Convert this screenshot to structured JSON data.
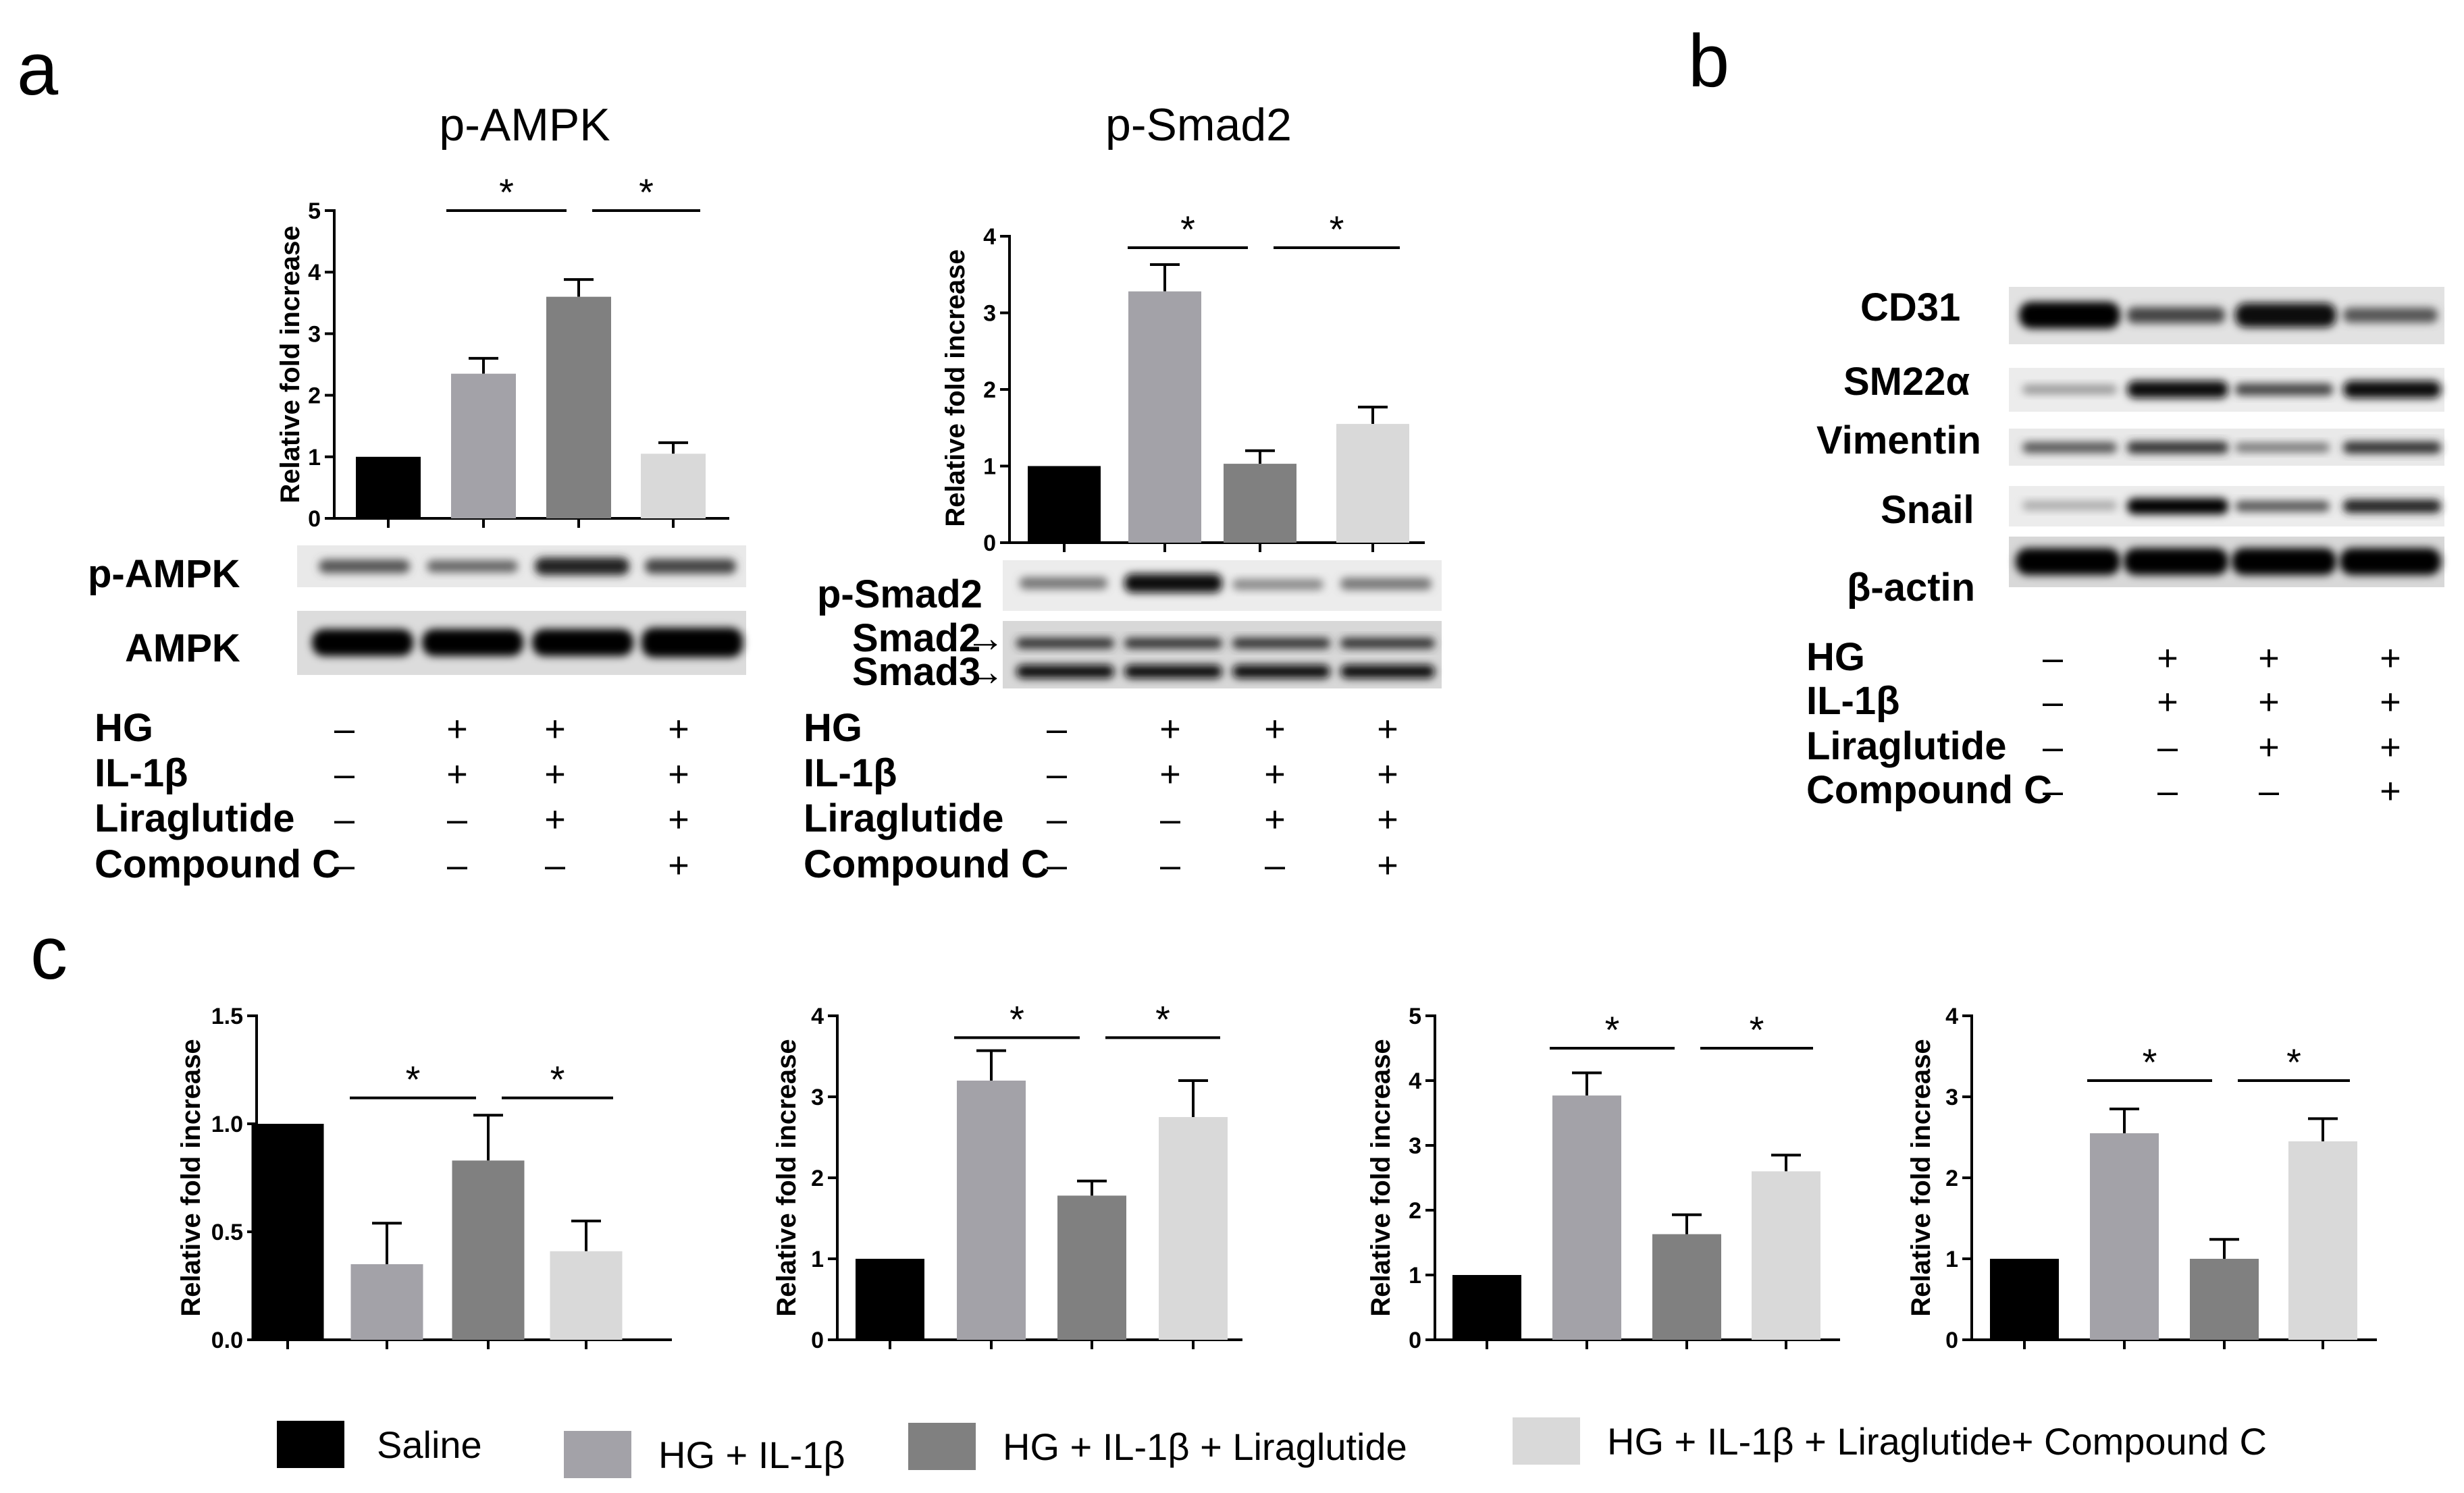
{
  "panels": {
    "a": "a",
    "b": "b",
    "c": "c"
  },
  "colors": {
    "saline": "#000000",
    "hg_il1b": "#a3a2a8",
    "hg_il1b_lira": "#808080",
    "hg_il1b_lira_cc": "#d9d9d9"
  },
  "legend": [
    {
      "label": "Saline",
      "color": "#000000"
    },
    {
      "label": "HG + IL-1β",
      "color": "#a3a2a8"
    },
    {
      "label": "HG + IL-1β + Liraglutide",
      "color": "#808080"
    },
    {
      "label": "HG + IL-1β + Liraglutide+ Compound C",
      "color": "#d9d9d9"
    }
  ],
  "treatment_rows": [
    {
      "label": "HG",
      "values": [
        "–",
        "+",
        "+",
        "+"
      ]
    },
    {
      "label": "IL-1β",
      "values": [
        "–",
        "+",
        "+",
        "+"
      ]
    },
    {
      "label": "Liraglutide",
      "values": [
        "–",
        "–",
        "+",
        "+"
      ]
    },
    {
      "label": "Compound C",
      "values": [
        "–",
        "–",
        "–",
        "+"
      ]
    }
  ],
  "blots": {
    "ampk": [
      "p-AMPK",
      "AMPK"
    ],
    "smad": [
      "p-Smad2",
      "Smad2",
      "Smad3"
    ],
    "b": [
      "CD31",
      "SM22α",
      "Vimentin",
      "Snail",
      "β-actin"
    ]
  },
  "chart_data": [
    {
      "type": "bar",
      "title": "p-AMPK",
      "ylabel": "Relative fold increase",
      "ylim": [
        0,
        5
      ],
      "yticks": [
        "0",
        "1",
        "2",
        "3",
        "4",
        "5"
      ],
      "categories": [
        "Saline",
        "HG + IL-1β",
        "HG + IL-1β + Liraglutide",
        "HG + IL-1β + Liraglutide+ Compound C"
      ],
      "values": [
        1.0,
        2.35,
        3.6,
        1.05
      ],
      "errors": [
        0,
        0.25,
        0.28,
        0.18
      ],
      "significance": [
        {
          "from": 1,
          "to": 2,
          "at": 5.0,
          "label": "*"
        },
        {
          "from": 2,
          "to": 3,
          "at": 5.0,
          "label": "*"
        }
      ]
    },
    {
      "type": "bar",
      "title": "p-Smad2",
      "ylabel": "Relative fold increase",
      "ylim": [
        0,
        4
      ],
      "yticks": [
        "0",
        "1",
        "2",
        "3",
        "4"
      ],
      "categories": [
        "Saline",
        "HG + IL-1β",
        "HG + IL-1β + Liraglutide",
        "HG + IL-1β + Liraglutide+ Compound C"
      ],
      "values": [
        1.0,
        3.28,
        1.03,
        1.55
      ],
      "errors": [
        0,
        0.35,
        0.17,
        0.22
      ],
      "significance": [
        {
          "from": 1,
          "to": 2,
          "at": 3.85,
          "label": "*"
        },
        {
          "from": 2,
          "to": 3,
          "at": 3.85,
          "label": "*"
        }
      ]
    },
    {
      "type": "bar",
      "title": "",
      "ylabel": "Relative fold increase",
      "ylim": [
        0,
        1.5
      ],
      "yticks": [
        "0.0",
        "0.5",
        "1.0",
        "1.5"
      ],
      "categories": [
        "Saline",
        "HG + IL-1β",
        "HG + IL-1β + Liraglutide",
        "HG + IL-1β + Liraglutide+ Compound C"
      ],
      "values": [
        1.0,
        0.35,
        0.83,
        0.41
      ],
      "errors": [
        0,
        0.19,
        0.21,
        0.14
      ],
      "significance": [
        {
          "from": 1,
          "to": 2,
          "at": 1.12,
          "label": "*"
        },
        {
          "from": 2,
          "to": 3,
          "at": 1.12,
          "label": "*"
        }
      ]
    },
    {
      "type": "bar",
      "title": "",
      "ylabel": "Relative fold increase",
      "ylim": [
        0,
        4
      ],
      "yticks": [
        "0",
        "1",
        "2",
        "3",
        "4"
      ],
      "categories": [
        "Saline",
        "HG + IL-1β",
        "HG + IL-1β + Liraglutide",
        "HG + IL-1β + Liraglutide+ Compound C"
      ],
      "values": [
        1.0,
        3.2,
        1.78,
        2.75
      ],
      "errors": [
        0,
        0.37,
        0.18,
        0.45
      ],
      "significance": [
        {
          "from": 1,
          "to": 2,
          "at": 3.73,
          "label": "*"
        },
        {
          "from": 2,
          "to": 3,
          "at": 3.73,
          "label": "*"
        }
      ]
    },
    {
      "type": "bar",
      "title": "",
      "ylabel": "Relative fold increase",
      "ylim": [
        0,
        5
      ],
      "yticks": [
        "0",
        "1",
        "2",
        "3",
        "4",
        "5"
      ],
      "categories": [
        "Saline",
        "HG + IL-1β",
        "HG + IL-1β + Liraglutide",
        "HG + IL-1β + Liraglutide+ Compound C"
      ],
      "values": [
        1.0,
        3.77,
        1.63,
        2.6
      ],
      "errors": [
        0,
        0.35,
        0.3,
        0.25
      ],
      "significance": [
        {
          "from": 1,
          "to": 2,
          "at": 4.5,
          "label": "*"
        },
        {
          "from": 2,
          "to": 3,
          "at": 4.5,
          "label": "*"
        }
      ]
    },
    {
      "type": "bar",
      "title": "",
      "ylabel": "Relative fold increase",
      "ylim": [
        0,
        4
      ],
      "yticks": [
        "0",
        "1",
        "2",
        "3",
        "4"
      ],
      "categories": [
        "Saline",
        "HG + IL-1β",
        "HG + IL-1β + Liraglutide",
        "HG + IL-1β + Liraglutide+ Compound C"
      ],
      "values": [
        1.0,
        2.55,
        1.0,
        2.45
      ],
      "errors": [
        0,
        0.3,
        0.24,
        0.28
      ],
      "significance": [
        {
          "from": 1,
          "to": 2,
          "at": 3.2,
          "label": "*"
        },
        {
          "from": 2,
          "to": 3,
          "at": 3.2,
          "label": "*"
        }
      ]
    }
  ]
}
